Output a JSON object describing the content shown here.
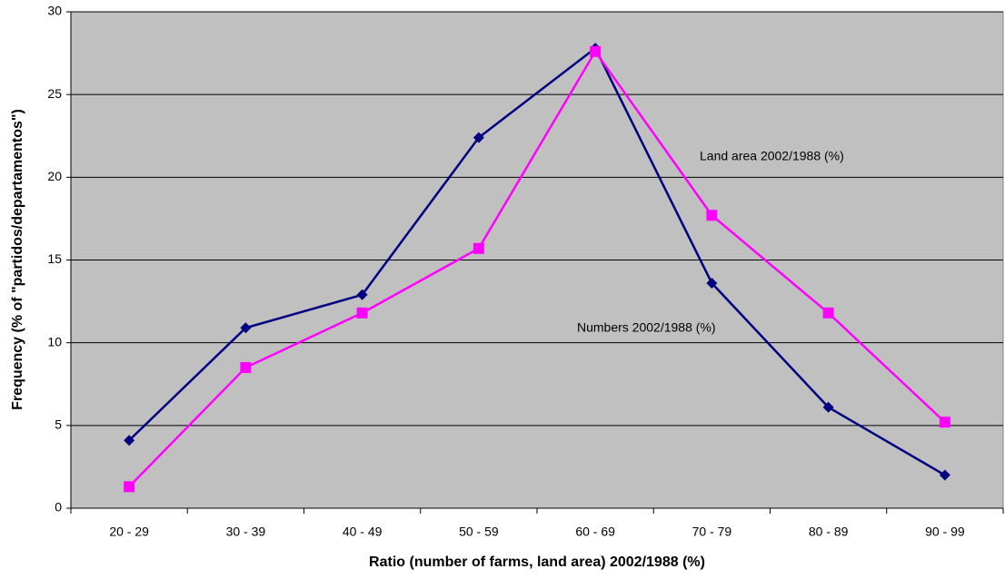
{
  "chart_data": {
    "type": "line",
    "x_label": "Ratio (number of farms,  land area) 2002/1988 (%)",
    "y_label": "Frequency (% of \"partidos/departamentos\")",
    "categories": [
      "20 - 29",
      "30 - 39",
      "40 - 49",
      "50 - 59",
      "60 - 69",
      "70 - 79",
      "80 - 89",
      "90 - 99"
    ],
    "series": [
      {
        "name": "Numbers 2002/1988 (%)",
        "color": "#000080",
        "marker": "diamond",
        "values": [
          4.1,
          10.9,
          12.9,
          22.4,
          27.8,
          13.6,
          6.1,
          2.0
        ]
      },
      {
        "name": "Land area 2002/1988 (%)",
        "color": "#ff00ff",
        "marker": "square",
        "values": [
          1.3,
          8.5,
          11.8,
          15.7,
          27.6,
          17.7,
          11.8,
          5.2
        ]
      }
    ],
    "ylim": [
      0,
      30
    ],
    "yticks": [
      0,
      5,
      10,
      15,
      20,
      25,
      30
    ],
    "grid": true
  }
}
